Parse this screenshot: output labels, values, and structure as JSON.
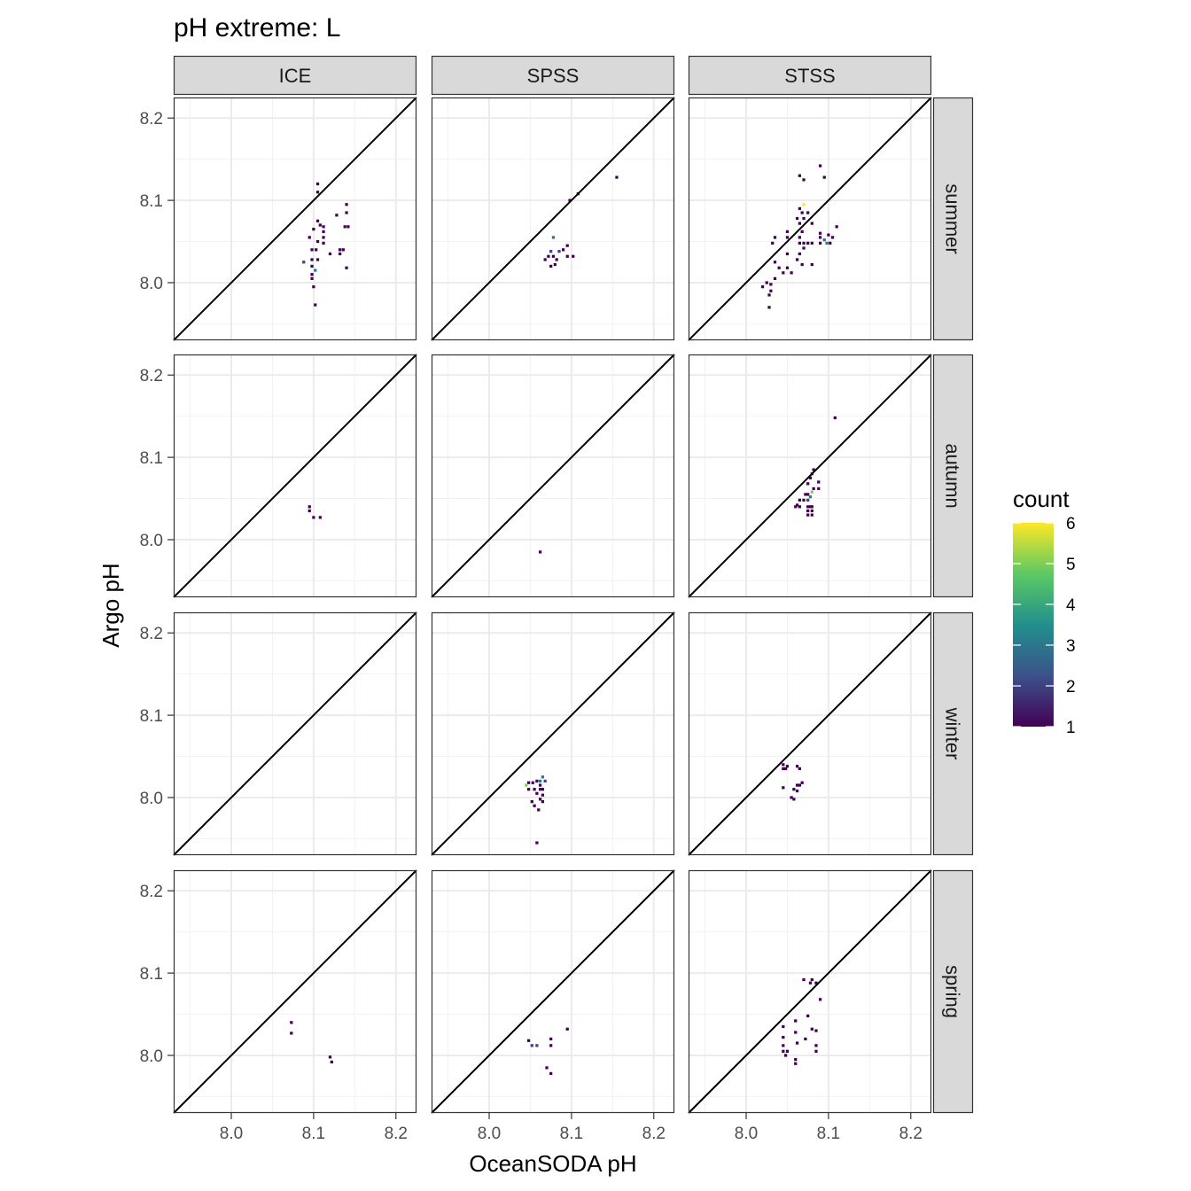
{
  "chart_data": {
    "type": "heatmap",
    "title": "pH extreme: L",
    "xlabel": "OceanSODA pH",
    "ylabel": "Argo pH",
    "xlim": [
      7.93,
      8.225
    ],
    "ylim": [
      7.93,
      8.225
    ],
    "x_ticks": [
      "8.0",
      "8.1",
      "8.2"
    ],
    "y_ticks": [
      "8.0",
      "8.1",
      "8.2"
    ],
    "x_tick_values": [
      8.0,
      8.1,
      8.2
    ],
    "y_tick_values": [
      8.0,
      8.1,
      8.2
    ],
    "grid": true,
    "reference_line": "y = x",
    "columns": [
      "ICE",
      "SPSS",
      "STSS"
    ],
    "rows": [
      "summer",
      "autumn",
      "winter",
      "spring"
    ],
    "legend": {
      "title": "count",
      "position": "right",
      "min": 1,
      "max": 6,
      "labels": [
        "1",
        "2",
        "3",
        "4",
        "5",
        "6"
      ],
      "values": [
        1,
        2,
        3,
        4,
        5,
        6
      ],
      "colors": [
        "#440154",
        "#3b528b",
        "#21908c",
        "#5dc963",
        "#fde725"
      ]
    },
    "bin_size": 0.0035,
    "panels": [
      {
        "col": "ICE",
        "row": "summer",
        "cells": [
          [
            8.105,
            8.12,
            1
          ],
          [
            8.105,
            8.11,
            1
          ],
          [
            8.14,
            8.095,
            1
          ],
          [
            8.14,
            8.085,
            1
          ],
          [
            8.128,
            8.082,
            1
          ],
          [
            8.105,
            8.075,
            1
          ],
          [
            8.108,
            8.07,
            1
          ],
          [
            8.112,
            8.068,
            1
          ],
          [
            8.138,
            8.068,
            1
          ],
          [
            8.142,
            8.068,
            1
          ],
          [
            8.1,
            8.065,
            1
          ],
          [
            8.112,
            8.062,
            1
          ],
          [
            8.095,
            8.055,
            1
          ],
          [
            8.112,
            8.055,
            1
          ],
          [
            8.105,
            8.05,
            1
          ],
          [
            8.112,
            8.048,
            1
          ],
          [
            8.098,
            8.04,
            1
          ],
          [
            8.103,
            8.04,
            1
          ],
          [
            8.132,
            8.04,
            1
          ],
          [
            8.136,
            8.04,
            1
          ],
          [
            8.12,
            8.035,
            1
          ],
          [
            8.132,
            8.035,
            1
          ],
          [
            8.098,
            8.028,
            1
          ],
          [
            8.105,
            8.028,
            1
          ],
          [
            8.088,
            8.025,
            2
          ],
          [
            8.098,
            8.02,
            1
          ],
          [
            8.102,
            8.015,
            3
          ],
          [
            8.14,
            8.018,
            1
          ],
          [
            8.098,
            8.01,
            1
          ],
          [
            8.098,
            8.005,
            1
          ],
          [
            8.1,
            7.995,
            1
          ],
          [
            8.102,
            7.973,
            1
          ]
        ]
      },
      {
        "col": "SPSS",
        "row": "summer",
        "cells": [
          [
            8.155,
            8.128,
            1
          ],
          [
            8.108,
            8.108,
            1
          ],
          [
            8.098,
            8.1,
            1
          ],
          [
            8.078,
            8.055,
            3
          ],
          [
            8.095,
            8.045,
            1
          ],
          [
            8.075,
            8.038,
            2
          ],
          [
            8.085,
            8.038,
            2
          ],
          [
            8.09,
            8.04,
            1
          ],
          [
            8.072,
            8.032,
            1
          ],
          [
            8.078,
            8.032,
            1
          ],
          [
            8.095,
            8.032,
            1
          ],
          [
            8.102,
            8.032,
            1
          ],
          [
            8.068,
            8.028,
            1
          ],
          [
            8.082,
            8.028,
            1
          ],
          [
            8.08,
            8.022,
            1
          ],
          [
            8.075,
            8.02,
            1
          ]
        ]
      },
      {
        "col": "STSS",
        "row": "summer",
        "cells": [
          [
            8.09,
            8.142,
            1
          ],
          [
            8.065,
            8.13,
            1
          ],
          [
            8.07,
            8.125,
            1
          ],
          [
            8.095,
            8.128,
            1
          ],
          [
            8.07,
            8.095,
            6
          ],
          [
            8.065,
            8.09,
            1
          ],
          [
            8.068,
            8.085,
            1
          ],
          [
            8.075,
            8.085,
            1
          ],
          [
            8.062,
            8.078,
            1
          ],
          [
            8.07,
            8.078,
            1
          ],
          [
            8.065,
            8.072,
            1
          ],
          [
            8.08,
            8.072,
            1
          ],
          [
            8.11,
            8.068,
            1
          ],
          [
            8.05,
            8.062,
            1
          ],
          [
            8.068,
            8.062,
            1
          ],
          [
            8.09,
            8.06,
            1
          ],
          [
            8.1,
            8.058,
            1
          ],
          [
            8.035,
            8.055,
            1
          ],
          [
            8.05,
            8.055,
            1
          ],
          [
            8.065,
            8.055,
            1
          ],
          [
            8.09,
            8.055,
            1
          ],
          [
            8.105,
            8.055,
            1
          ],
          [
            8.095,
            8.052,
            3
          ],
          [
            8.032,
            8.048,
            1
          ],
          [
            8.065,
            8.048,
            1
          ],
          [
            8.07,
            8.048,
            1
          ],
          [
            8.075,
            8.048,
            1
          ],
          [
            8.08,
            8.048,
            1
          ],
          [
            8.09,
            8.048,
            1
          ],
          [
            8.098,
            8.048,
            3
          ],
          [
            8.102,
            8.048,
            1
          ],
          [
            8.07,
            8.042,
            1
          ],
          [
            8.05,
            8.035,
            1
          ],
          [
            8.065,
            8.035,
            1
          ],
          [
            8.062,
            8.028,
            1
          ],
          [
            8.035,
            8.025,
            1
          ],
          [
            8.068,
            8.022,
            1
          ],
          [
            8.08,
            8.022,
            1
          ],
          [
            8.04,
            8.018,
            1
          ],
          [
            8.05,
            8.018,
            1
          ],
          [
            8.045,
            8.012,
            1
          ],
          [
            8.035,
            8.005,
            1
          ],
          [
            8.055,
            8.012,
            1
          ],
          [
            8.025,
            8.0,
            1
          ],
          [
            8.03,
            7.998,
            1
          ],
          [
            8.02,
            7.995,
            1
          ],
          [
            8.03,
            7.99,
            1
          ],
          [
            8.028,
            7.985,
            1
          ],
          [
            8.028,
            7.97,
            1
          ]
        ]
      },
      {
        "col": "ICE",
        "row": "autumn",
        "cells": [
          [
            8.095,
            8.04,
            1
          ],
          [
            8.095,
            8.035,
            1
          ],
          [
            8.1,
            8.027,
            1
          ],
          [
            8.108,
            8.027,
            1
          ]
        ]
      },
      {
        "col": "SPSS",
        "row": "autumn",
        "cells": [
          [
            8.062,
            7.985,
            1
          ]
        ]
      },
      {
        "col": "STSS",
        "row": "autumn",
        "cells": [
          [
            8.108,
            8.148,
            1
          ],
          [
            8.082,
            8.085,
            1
          ],
          [
            8.08,
            8.08,
            1
          ],
          [
            8.078,
            8.075,
            1
          ],
          [
            8.088,
            8.07,
            1
          ],
          [
            8.075,
            8.068,
            1
          ],
          [
            8.082,
            8.062,
            1
          ],
          [
            8.088,
            8.062,
            1
          ],
          [
            8.08,
            8.058,
            5
          ],
          [
            8.072,
            8.055,
            1
          ],
          [
            8.075,
            8.055,
            1
          ],
          [
            8.078,
            8.052,
            3
          ],
          [
            8.065,
            8.048,
            1
          ],
          [
            8.07,
            8.048,
            1
          ],
          [
            8.075,
            8.048,
            2
          ],
          [
            8.062,
            8.042,
            1
          ],
          [
            8.06,
            8.04,
            1
          ],
          [
            8.065,
            8.04,
            1
          ],
          [
            8.075,
            8.04,
            1
          ],
          [
            8.078,
            8.04,
            1
          ],
          [
            8.08,
            8.04,
            1
          ],
          [
            8.075,
            8.035,
            1
          ],
          [
            8.08,
            8.035,
            1
          ],
          [
            8.075,
            8.03,
            1
          ],
          [
            8.08,
            8.03,
            1
          ]
        ]
      },
      {
        "col": "SPSS",
        "row": "winter",
        "cells": [
          [
            8.065,
            8.025,
            3
          ],
          [
            8.048,
            8.018,
            1
          ],
          [
            8.053,
            8.018,
            1
          ],
          [
            8.058,
            8.02,
            1
          ],
          [
            8.062,
            8.02,
            3
          ],
          [
            8.068,
            8.02,
            2
          ],
          [
            8.045,
            8.015,
            5
          ],
          [
            8.062,
            8.015,
            1
          ],
          [
            8.048,
            8.01,
            1
          ],
          [
            8.055,
            8.01,
            1
          ],
          [
            8.062,
            8.01,
            1
          ],
          [
            8.065,
            8.01,
            1
          ],
          [
            8.058,
            8.005,
            1
          ],
          [
            8.065,
            8.003,
            1
          ],
          [
            8.062,
            7.998,
            1
          ],
          [
            8.065,
            7.995,
            1
          ],
          [
            8.052,
            7.995,
            1
          ],
          [
            8.055,
            7.99,
            1
          ],
          [
            8.06,
            7.985,
            1
          ],
          [
            8.058,
            7.945,
            1
          ]
        ]
      },
      {
        "col": "STSS",
        "row": "winter",
        "cells": [
          [
            8.045,
            8.04,
            1
          ],
          [
            8.05,
            8.038,
            1
          ],
          [
            8.062,
            8.038,
            1
          ],
          [
            8.065,
            8.035,
            1
          ],
          [
            8.045,
            8.035,
            1
          ],
          [
            8.048,
            8.035,
            1
          ],
          [
            8.068,
            8.018,
            1
          ],
          [
            8.062,
            8.015,
            1
          ],
          [
            8.065,
            8.015,
            1
          ],
          [
            8.045,
            8.012,
            1
          ],
          [
            8.058,
            8.01,
            1
          ],
          [
            8.062,
            8.008,
            1
          ],
          [
            8.055,
            8.0,
            1
          ],
          [
            8.058,
            7.998,
            1
          ]
        ]
      },
      {
        "col": "ICE",
        "row": "spring",
        "cells": [
          [
            8.073,
            8.04,
            1
          ],
          [
            8.073,
            8.027,
            1
          ],
          [
            8.12,
            7.998,
            1
          ],
          [
            8.122,
            7.992,
            1
          ]
        ]
      },
      {
        "col": "SPSS",
        "row": "spring",
        "cells": [
          [
            8.095,
            8.032,
            1
          ],
          [
            8.075,
            8.02,
            1
          ],
          [
            8.048,
            8.018,
            1
          ],
          [
            8.052,
            8.012,
            2
          ],
          [
            8.058,
            8.012,
            2
          ],
          [
            8.075,
            8.012,
            1
          ],
          [
            8.07,
            7.985,
            1
          ],
          [
            8.075,
            7.978,
            1
          ]
        ]
      },
      {
        "col": "STSS",
        "row": "spring",
        "cells": [
          [
            8.07,
            8.092,
            1
          ],
          [
            8.08,
            8.092,
            1
          ],
          [
            8.078,
            8.088,
            1
          ],
          [
            8.085,
            8.088,
            1
          ],
          [
            8.09,
            8.068,
            1
          ],
          [
            8.075,
            8.048,
            1
          ],
          [
            8.06,
            8.042,
            1
          ],
          [
            8.045,
            8.035,
            1
          ],
          [
            8.08,
            8.032,
            1
          ],
          [
            8.085,
            8.03,
            1
          ],
          [
            8.06,
            8.028,
            1
          ],
          [
            8.045,
            8.022,
            1
          ],
          [
            8.072,
            8.02,
            1
          ],
          [
            8.062,
            8.015,
            1
          ],
          [
            8.045,
            8.012,
            1
          ],
          [
            8.085,
            8.012,
            1
          ],
          [
            8.045,
            8.005,
            1
          ],
          [
            8.085,
            8.005,
            1
          ],
          [
            8.05,
            8.005,
            1
          ],
          [
            8.048,
            8.0,
            1
          ],
          [
            8.06,
            7.995,
            1
          ],
          [
            8.06,
            7.99,
            1
          ]
        ]
      }
    ]
  }
}
